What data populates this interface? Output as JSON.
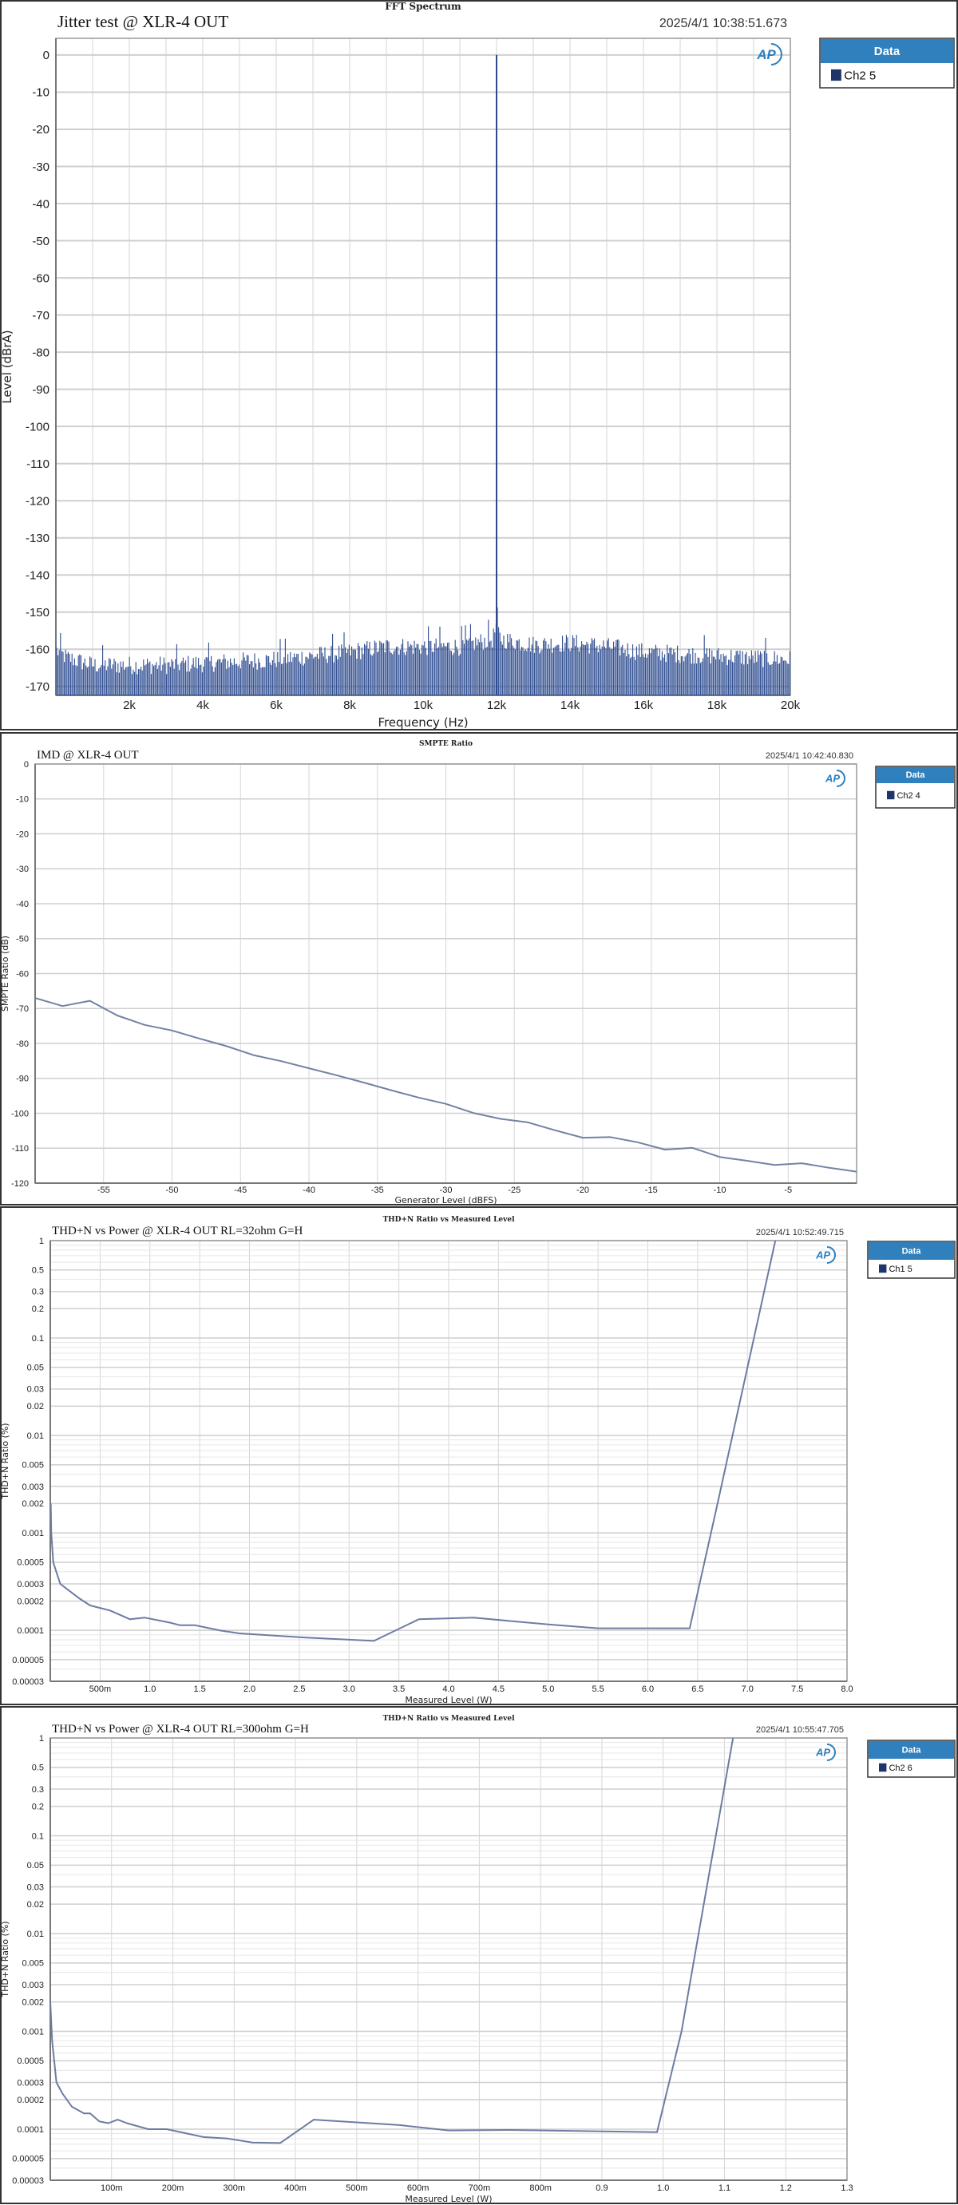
{
  "chart_data": [
    {
      "type": "line",
      "heading": "FFT Spectrum",
      "title": "Jitter test @ XLR-4  OUT",
      "timestamp": "2025/4/1 10:38:51.673",
      "xlabel": "Frequency (Hz)",
      "ylabel": "Level (dBrA)",
      "xscale": "linear",
      "yscale": "linear",
      "xlim": [
        0,
        20000
      ],
      "ylim": [
        -172.4,
        4.5
      ],
      "grid": true,
      "legend": {
        "placement": "right",
        "header": "Data",
        "items": [
          {
            "label": "Ch2 5",
            "color": "#1f3468"
          }
        ]
      },
      "line_color": "#2b4a8f",
      "xticks": [
        {
          "value": 2000,
          "label": "2k"
        },
        {
          "value": 4000,
          "label": "4k"
        },
        {
          "value": 6000,
          "label": "6k"
        },
        {
          "value": 8000,
          "label": "8k"
        },
        {
          "value": 10000,
          "label": "10k"
        },
        {
          "value": 12000,
          "label": "12k"
        },
        {
          "value": 14000,
          "label": "14k"
        },
        {
          "value": 16000,
          "label": "16k"
        },
        {
          "value": 18000,
          "label": "18k"
        },
        {
          "value": 20000,
          "label": "20k"
        }
      ],
      "yticks": [
        {
          "value": 0,
          "label": "0"
        },
        {
          "value": -10,
          "label": "-10"
        },
        {
          "value": -20,
          "label": "-20"
        },
        {
          "value": -30,
          "label": "-30"
        },
        {
          "value": -40,
          "label": "-40"
        },
        {
          "value": -50,
          "label": "-50"
        },
        {
          "value": -60,
          "label": "-60"
        },
        {
          "value": -70,
          "label": "-70"
        },
        {
          "value": -80,
          "label": "-80"
        },
        {
          "value": -90,
          "label": "-90"
        },
        {
          "value": -100,
          "label": "-100"
        },
        {
          "value": -110,
          "label": "-110"
        },
        {
          "value": -120,
          "label": "-120"
        },
        {
          "value": -130,
          "label": "-130"
        },
        {
          "value": -140,
          "label": "-140"
        },
        {
          "value": -150,
          "label": "-150"
        },
        {
          "value": -160,
          "label": "-160"
        },
        {
          "value": -170,
          "label": "-170"
        }
      ],
      "series": [
        {
          "name": "Ch2 5",
          "peak": {
            "x": 12000,
            "y": 0
          },
          "noise_floor": [
            [
              0,
              -160
            ],
            [
              300,
              -162
            ],
            [
              1000,
              -164
            ],
            [
              3000,
              -164
            ],
            [
              4000,
              -163.5
            ],
            [
              6000,
              -162.5
            ],
            [
              7000,
              -161.5
            ],
            [
              8000,
              -160.5
            ],
            [
              9000,
              -159
            ],
            [
              11000,
              -159
            ],
            [
              11900,
              -157
            ],
            [
              12000,
              -153
            ],
            [
              12100,
              -157
            ],
            [
              13000,
              -158.5
            ],
            [
              14000,
              -158
            ],
            [
              15000,
              -159
            ],
            [
              16000,
              -160.5
            ],
            [
              18000,
              -161.5
            ],
            [
              20000,
              -162.5
            ]
          ]
        }
      ]
    },
    {
      "type": "line",
      "heading": "SMPTE Ratio",
      "title": "IMD @ XLR-4 OUT",
      "timestamp": "2025/4/1 10:42:40.830",
      "xlabel": "Generator Level (dBFS)",
      "ylabel": "SMPTE Ratio (dB)",
      "xscale": "linear",
      "yscale": "linear",
      "xlim": [
        -60,
        0
      ],
      "ylim": [
        -120,
        0
      ],
      "grid": true,
      "legend": {
        "placement": "right",
        "header": "Data",
        "items": [
          {
            "label": "Ch2 4",
            "color": "#1f3468"
          }
        ]
      },
      "line_color": "#7382a4",
      "xticks": [
        {
          "value": -55,
          "label": "-55"
        },
        {
          "value": -50,
          "label": "-50"
        },
        {
          "value": -45,
          "label": "-45"
        },
        {
          "value": -40,
          "label": "-40"
        },
        {
          "value": -35,
          "label": "-35"
        },
        {
          "value": -30,
          "label": "-30"
        },
        {
          "value": -25,
          "label": "-25"
        },
        {
          "value": -20,
          "label": "-20"
        },
        {
          "value": -15,
          "label": "-15"
        },
        {
          "value": -10,
          "label": "-10"
        },
        {
          "value": -5,
          "label": "-5"
        }
      ],
      "yticks": [
        {
          "value": 0,
          "label": "0"
        },
        {
          "value": -10,
          "label": "-10"
        },
        {
          "value": -20,
          "label": "-20"
        },
        {
          "value": -30,
          "label": "-30"
        },
        {
          "value": -40,
          "label": "-40"
        },
        {
          "value": -50,
          "label": "-50"
        },
        {
          "value": -60,
          "label": "-60"
        },
        {
          "value": -70,
          "label": "-70"
        },
        {
          "value": -80,
          "label": "-80"
        },
        {
          "value": -90,
          "label": "-90"
        },
        {
          "value": -100,
          "label": "-100"
        },
        {
          "value": -110,
          "label": "-110"
        },
        {
          "value": -120,
          "label": "-120"
        }
      ],
      "series": [
        {
          "name": "Ch2 4",
          "x": [
            -60,
            -58,
            -56,
            -54,
            -52,
            -50,
            -48,
            -46,
            -44,
            -42,
            -40,
            -38,
            -36,
            -34,
            -32,
            -30,
            -28,
            -26,
            -24,
            -22,
            -20,
            -18,
            -16,
            -14,
            -12,
            -10,
            -8,
            -6,
            -4,
            -2,
            0
          ],
          "y": [
            -67,
            -69.3,
            -67.8,
            -72,
            -74.7,
            -76.3,
            -78.6,
            -80.8,
            -83.4,
            -85.1,
            -87.1,
            -89.1,
            -91.2,
            -93.4,
            -95.5,
            -97.3,
            -99.9,
            -101.6,
            -102.6,
            -104.9,
            -107.0,
            -106.8,
            -108.3,
            -110.4,
            -109.9,
            -112.5,
            -113.6,
            -114.8,
            -114.3,
            -115.6,
            -116.7
          ]
        }
      ]
    },
    {
      "type": "line",
      "heading": "THD+N Ratio vs Measured Level",
      "title": "THD+N  vs Power @ XLR-4 OUT  RL=32ohm  G=H",
      "timestamp": "2025/4/1 10:52:49.715",
      "xlabel": "Measured Level (W)",
      "ylabel": "THD+N Ratio (%)",
      "xscale": "linear",
      "yscale": "log",
      "xlim": [
        0,
        8
      ],
      "ylim": [
        3e-05,
        1
      ],
      "grid": true,
      "legend": {
        "placement": "right",
        "header": "Data",
        "items": [
          {
            "label": "Ch1 5",
            "color": "#1f3468"
          }
        ]
      },
      "line_color": "#6c7ca2",
      "xticks": [
        {
          "value": 0.5,
          "label": "500m"
        },
        {
          "value": 1.0,
          "label": "1.0"
        },
        {
          "value": 1.5,
          "label": "1.5"
        },
        {
          "value": 2.0,
          "label": "2.0"
        },
        {
          "value": 2.5,
          "label": "2.5"
        },
        {
          "value": 3.0,
          "label": "3.0"
        },
        {
          "value": 3.5,
          "label": "3.5"
        },
        {
          "value": 4.0,
          "label": "4.0"
        },
        {
          "value": 4.5,
          "label": "4.5"
        },
        {
          "value": 5.0,
          "label": "5.0"
        },
        {
          "value": 5.5,
          "label": "5.5"
        },
        {
          "value": 6.0,
          "label": "6.0"
        },
        {
          "value": 6.5,
          "label": "6.5"
        },
        {
          "value": 7.0,
          "label": "7.0"
        },
        {
          "value": 7.5,
          "label": "7.5"
        },
        {
          "value": 8.0,
          "label": "8.0"
        }
      ],
      "yticks": [
        {
          "value": 1,
          "label": "1"
        },
        {
          "value": 0.5,
          "label": "0.5"
        },
        {
          "value": 0.3,
          "label": "0.3"
        },
        {
          "value": 0.2,
          "label": "0.2"
        },
        {
          "value": 0.1,
          "label": "0.1"
        },
        {
          "value": 0.05,
          "label": "0.05"
        },
        {
          "value": 0.03,
          "label": "0.03"
        },
        {
          "value": 0.02,
          "label": "0.02"
        },
        {
          "value": 0.01,
          "label": "0.01"
        },
        {
          "value": 0.005,
          "label": "0.005"
        },
        {
          "value": 0.003,
          "label": "0.003"
        },
        {
          "value": 0.002,
          "label": "0.002"
        },
        {
          "value": 0.001,
          "label": "0.001"
        },
        {
          "value": 0.0005,
          "label": "0.0005"
        },
        {
          "value": 0.0003,
          "label": "0.0003"
        },
        {
          "value": 0.0002,
          "label": "0.0002"
        },
        {
          "value": 0.0001,
          "label": "0.0001"
        },
        {
          "value": 5e-05,
          "label": "0.00005"
        },
        {
          "value": 3e-05,
          "label": "0.00003"
        }
      ],
      "series": [
        {
          "name": "Ch1 5",
          "x": [
            0.005,
            0.01,
            0.03,
            0.06,
            0.1,
            0.2,
            0.3,
            0.4,
            0.6,
            0.8,
            0.95,
            1.2,
            1.3,
            1.45,
            1.7,
            1.9,
            2.5,
            3.25,
            3.7,
            4.25,
            5.0,
            5.5,
            6.42,
            6.7,
            7.0,
            7.28
          ],
          "y": [
            0.002,
            0.001,
            0.0005,
            0.0004,
            0.0003,
            0.00025,
            0.00021,
            0.00018,
            0.00016,
            0.00013,
            0.000135,
            0.00012,
            0.000113,
            0.000113,
            0.0001,
            9.3e-05,
            8.5e-05,
            7.8e-05,
            0.00013,
            0.000135,
            0.000115,
            0.000105,
            0.000105,
            0.002,
            0.05,
            1
          ]
        }
      ]
    },
    {
      "type": "line",
      "heading": "THD+N Ratio vs Measured Level",
      "title": "THD+N  vs Power @ XLR-4 OUT  RL=300ohm  G=H",
      "timestamp": "2025/4/1 10:55:47.705",
      "xlabel": "Measured Level (W)",
      "ylabel": "THD+N Ratio (%)",
      "xscale": "linear",
      "yscale": "log",
      "xlim": [
        0,
        1.3
      ],
      "ylim": [
        3e-05,
        1
      ],
      "grid": true,
      "legend": {
        "placement": "right",
        "header": "Data",
        "items": [
          {
            "label": "Ch2 6",
            "color": "#1f3468"
          }
        ]
      },
      "line_color": "#6c7ca2",
      "xticks": [
        {
          "value": 0.1,
          "label": "100m"
        },
        {
          "value": 0.2,
          "label": "200m"
        },
        {
          "value": 0.3,
          "label": "300m"
        },
        {
          "value": 0.4,
          "label": "400m"
        },
        {
          "value": 0.5,
          "label": "500m"
        },
        {
          "value": 0.6,
          "label": "600m"
        },
        {
          "value": 0.7,
          "label": "700m"
        },
        {
          "value": 0.8,
          "label": "800m"
        },
        {
          "value": 0.9,
          "label": "0.9"
        },
        {
          "value": 1.0,
          "label": "1.0"
        },
        {
          "value": 1.1,
          "label": "1.1"
        },
        {
          "value": 1.2,
          "label": "1.2"
        },
        {
          "value": 1.3,
          "label": "1.3"
        }
      ],
      "yticks": [
        {
          "value": 1,
          "label": "1"
        },
        {
          "value": 0.5,
          "label": "0.5"
        },
        {
          "value": 0.3,
          "label": "0.3"
        },
        {
          "value": 0.2,
          "label": "0.2"
        },
        {
          "value": 0.1,
          "label": "0.1"
        },
        {
          "value": 0.05,
          "label": "0.05"
        },
        {
          "value": 0.03,
          "label": "0.03"
        },
        {
          "value": 0.02,
          "label": "0.02"
        },
        {
          "value": 0.01,
          "label": "0.01"
        },
        {
          "value": 0.005,
          "label": "0.005"
        },
        {
          "value": 0.003,
          "label": "0.003"
        },
        {
          "value": 0.002,
          "label": "0.002"
        },
        {
          "value": 0.001,
          "label": "0.001"
        },
        {
          "value": 0.0005,
          "label": "0.0005"
        },
        {
          "value": 0.0003,
          "label": "0.0003"
        },
        {
          "value": 0.0002,
          "label": "0.0002"
        },
        {
          "value": 0.0001,
          "label": "0.0001"
        },
        {
          "value": 5e-05,
          "label": "0.00005"
        },
        {
          "value": 3e-05,
          "label": "0.00003"
        }
      ],
      "series": [
        {
          "name": "Ch2 6",
          "x": [
            0.0,
            0.003,
            0.01,
            0.02,
            0.035,
            0.055,
            0.065,
            0.08,
            0.095,
            0.11,
            0.125,
            0.16,
            0.19,
            0.25,
            0.29,
            0.33,
            0.375,
            0.43,
            0.57,
            0.65,
            0.75,
            0.99,
            1.03,
            1.06,
            1.114
          ],
          "y": [
            0.002,
            0.0008,
            0.0003,
            0.00023,
            0.00017,
            0.000145,
            0.000145,
            0.00012,
            0.000115,
            0.000125,
            0.000115,
            0.0001,
            0.0001,
            8.3e-05,
            8e-05,
            7.3e-05,
            7.2e-05,
            0.000125,
            0.00011,
            9.7e-05,
            9.8e-05,
            9.3e-05,
            0.001,
            0.012,
            1
          ]
        }
      ]
    }
  ]
}
